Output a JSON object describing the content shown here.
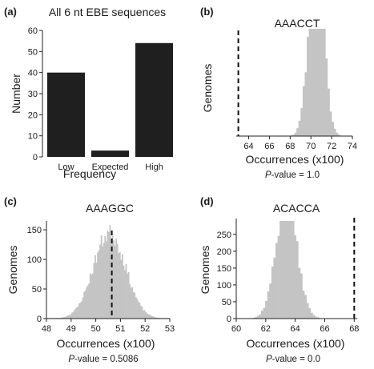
{
  "colors": {
    "bar_dark": "#1f1f1f",
    "hist_gray": "#c4c4c4",
    "axis": "#222222",
    "dashed_line": "#111111"
  },
  "chart_data": [
    {
      "panel": "(a)",
      "type": "bar",
      "title": "All 6 nt EBE sequences",
      "xlabel": "Frequency",
      "ylabel": "Number",
      "categories": [
        "Low",
        "Expected",
        "High"
      ],
      "values": [
        40,
        3,
        54
      ],
      "ylim": [
        0,
        60
      ],
      "yticks": [
        "0",
        "10",
        "20",
        "30",
        "40",
        "50",
        "60"
      ]
    },
    {
      "panel": "(b)",
      "type": "bar",
      "title": "AAACCT",
      "xlabel": "Occurrences (x100)",
      "ylabel": "Genomes",
      "xlim": [
        62.8,
        74
      ],
      "ylim": [
        0,
        280
      ],
      "xticks": [
        "64",
        "66",
        "68",
        "70",
        "72",
        "74"
      ],
      "yticks": [],
      "observed": 63.0,
      "dist": {
        "mean": 70.5,
        "sd": 0.7,
        "n": 4500,
        "binwidth": 0.2,
        "floor": 1
      },
      "p_prefix": "P",
      "p_rest": "-value = 1.0"
    },
    {
      "panel": "(c)",
      "type": "bar",
      "title": "AAAGGC",
      "xlabel": "Occurrences (x100)",
      "ylabel": "Genomes",
      "xlim": [
        48,
        53
      ],
      "ylim": [
        0,
        165
      ],
      "xticks": [
        "48",
        "49",
        "50",
        "51",
        "52",
        "53"
      ],
      "yticks": [
        "0",
        "50",
        "100",
        "150"
      ],
      "observed": 50.65,
      "dist": {
        "mean": 50.55,
        "sd": 0.65,
        "n": 4700,
        "binwidth": 0.05,
        "floor": 1
      },
      "p_prefix": "P",
      "p_rest": "-value = 0.5086"
    },
    {
      "panel": "(d)",
      "type": "bar",
      "title": "ACACCA",
      "xlabel": "Occurrences (x100)",
      "ylabel": "Genomes",
      "xlim": [
        60,
        68.2
      ],
      "ylim": [
        0,
        290
      ],
      "xticks": [
        "60",
        "62",
        "64",
        "66",
        "68"
      ],
      "yticks": [
        "0",
        "50",
        "100",
        "150",
        "200",
        "250"
      ],
      "observed": 68.0,
      "dist": {
        "mean": 63.4,
        "sd": 0.7,
        "n": 4500,
        "binwidth": 0.14,
        "floor": 1
      },
      "p_prefix": "P",
      "p_rest": "-value = 0.0"
    }
  ]
}
